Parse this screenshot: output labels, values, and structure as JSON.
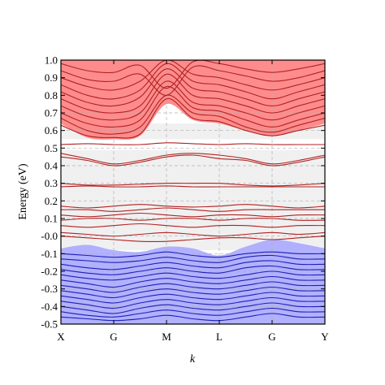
{
  "chart_data": {
    "type": "line",
    "title": "",
    "xlabel": "k",
    "ylabel": "Energy (eV)",
    "x_ticks": [
      "X",
      "G",
      "M",
      "L",
      "G",
      "Y"
    ],
    "x_positions": [
      0,
      1,
      2,
      3,
      4,
      5
    ],
    "xlim": [
      0,
      5
    ],
    "ylim": [
      -0.5,
      1.0
    ],
    "y_ticks": [
      -0.5,
      -0.4,
      -0.3,
      -0.2,
      -0.1,
      -0.0,
      0.1,
      0.2,
      0.3,
      0.4,
      0.5,
      0.6,
      0.7,
      0.8,
      0.9,
      1.0
    ],
    "y_tick_labels": [
      "-0.5",
      "-0.4",
      "-0.3",
      "-0.2",
      "-0.1",
      "-0.0",
      "0.1",
      "0.2",
      "0.3",
      "0.4",
      "0.5",
      "0.6",
      "0.7",
      "0.8",
      "0.9",
      "1.0"
    ],
    "grid": "dashed",
    "colors": {
      "conduction_line": "#b22222",
      "conduction_fill": "#ff8080",
      "valence_line": "#1f1fb4",
      "valence_fill": "#a8a8ff",
      "gap_fill": "#f0f0f0",
      "grid": "#b0b0b0"
    },
    "gap_bands": [
      {
        "y_low": -0.08,
        "y_high": 0.49
      },
      {
        "y_low": 0.55,
        "y_high": 0.64
      }
    ],
    "conduction_region": {
      "x": [
        0,
        0.5,
        1.0,
        1.5,
        2.0,
        2.5,
        3.0,
        3.5,
        4.0,
        4.5,
        5.0
      ],
      "lower_edge": [
        0.64,
        0.56,
        0.55,
        0.57,
        0.75,
        0.66,
        0.64,
        0.6,
        0.57,
        0.6,
        0.64
      ]
    },
    "valence_region": {
      "x": [
        0,
        0.5,
        1.0,
        1.5,
        2.0,
        2.5,
        3.0,
        3.5,
        4.0,
        4.5,
        5.0
      ],
      "upper_edge": [
        -0.07,
        -0.05,
        -0.08,
        -0.09,
        -0.06,
        -0.07,
        -0.11,
        -0.06,
        -0.02,
        -0.04,
        -0.07
      ]
    },
    "series": [
      {
        "group": "conduction",
        "x": [
          0,
          0.5,
          1,
          1.5,
          2,
          2.5,
          3,
          3.5,
          4,
          4.5,
          5
        ],
        "y": [
          0.63,
          0.57,
          0.56,
          0.58,
          0.78,
          0.67,
          0.65,
          0.6,
          0.57,
          0.6,
          0.63
        ]
      },
      {
        "group": "conduction",
        "x": [
          0,
          0.5,
          1,
          1.5,
          2,
          2.5,
          3,
          3.5,
          4,
          4.5,
          5
        ],
        "y": [
          0.67,
          0.6,
          0.58,
          0.62,
          0.8,
          0.7,
          0.68,
          0.62,
          0.59,
          0.63,
          0.67
        ]
      },
      {
        "group": "conduction",
        "x": [
          0,
          0.5,
          1,
          1.5,
          2,
          2.5,
          3,
          3.5,
          4,
          4.5,
          5
        ],
        "y": [
          0.7,
          0.64,
          0.62,
          0.66,
          0.85,
          0.73,
          0.71,
          0.66,
          0.62,
          0.66,
          0.7
        ]
      },
      {
        "group": "conduction",
        "x": [
          0,
          0.5,
          1,
          1.5,
          2,
          2.5,
          3,
          3.5,
          4,
          4.5,
          5
        ],
        "y": [
          0.74,
          0.68,
          0.66,
          0.7,
          0.88,
          0.76,
          0.74,
          0.7,
          0.66,
          0.7,
          0.74
        ]
      },
      {
        "group": "conduction",
        "x": [
          0,
          0.5,
          1,
          1.5,
          2,
          2.5,
          3,
          3.5,
          4,
          4.5,
          5
        ],
        "y": [
          0.78,
          0.72,
          0.7,
          0.74,
          0.92,
          0.8,
          0.78,
          0.74,
          0.7,
          0.74,
          0.78
        ]
      },
      {
        "group": "conduction",
        "x": [
          0,
          0.5,
          1,
          1.5,
          2,
          2.5,
          3,
          3.5,
          4,
          4.5,
          5
        ],
        "y": [
          0.82,
          0.76,
          0.74,
          0.79,
          0.95,
          0.84,
          0.82,
          0.78,
          0.74,
          0.78,
          0.82
        ]
      },
      {
        "group": "conduction",
        "x": [
          0,
          0.5,
          1,
          1.5,
          2,
          2.5,
          3,
          3.5,
          4,
          4.5,
          5
        ],
        "y": [
          0.86,
          0.8,
          0.78,
          0.83,
          0.98,
          0.88,
          0.86,
          0.82,
          0.78,
          0.82,
          0.86
        ]
      },
      {
        "group": "conduction",
        "x": [
          0,
          0.5,
          1,
          1.5,
          2,
          2.5,
          3,
          3.5,
          4,
          4.5,
          5
        ],
        "y": [
          0.9,
          0.85,
          0.83,
          0.88,
          1.0,
          0.92,
          0.9,
          0.86,
          0.83,
          0.86,
          0.9
        ]
      },
      {
        "group": "conduction",
        "x": [
          0,
          0.5,
          1,
          1.5,
          2,
          2.5,
          3,
          3.5,
          4,
          4.5,
          5
        ],
        "y": [
          0.94,
          0.89,
          0.88,
          0.92,
          0.8,
          0.96,
          0.94,
          0.91,
          0.88,
          0.9,
          0.94
        ]
      },
      {
        "group": "conduction",
        "x": [
          0,
          0.5,
          1,
          1.5,
          2,
          2.5,
          3,
          3.5,
          4,
          4.5,
          5
        ],
        "y": [
          0.98,
          0.94,
          0.93,
          0.97,
          0.84,
          0.99,
          0.98,
          0.95,
          0.93,
          0.95,
          0.98
        ]
      },
      {
        "group": "gap",
        "x": [
          0,
          0.5,
          1,
          1.5,
          2,
          2.5,
          3,
          3.5,
          4,
          4.5,
          5
        ],
        "y": [
          0.52,
          0.525,
          0.52,
          0.52,
          0.53,
          0.525,
          0.52,
          0.525,
          0.52,
          0.52,
          0.52
        ]
      },
      {
        "group": "gap",
        "x": [
          0,
          0.5,
          1,
          1.5,
          2,
          2.5,
          3,
          3.5,
          4,
          4.5,
          5
        ],
        "y": [
          0.47,
          0.44,
          0.41,
          0.43,
          0.46,
          0.47,
          0.46,
          0.44,
          0.41,
          0.43,
          0.46
        ]
      },
      {
        "group": "gap",
        "x": [
          0,
          0.5,
          1,
          1.5,
          2,
          2.5,
          3,
          3.5,
          4,
          4.5,
          5
        ],
        "y": [
          0.45,
          0.43,
          0.4,
          0.42,
          0.45,
          0.46,
          0.44,
          0.43,
          0.4,
          0.42,
          0.45
        ]
      },
      {
        "group": "gap",
        "x": [
          0,
          0.5,
          1,
          1.5,
          2,
          2.5,
          3,
          3.5,
          4,
          4.5,
          5
        ],
        "y": [
          0.3,
          0.29,
          0.29,
          0.295,
          0.3,
          0.3,
          0.3,
          0.29,
          0.285,
          0.29,
          0.3
        ]
      },
      {
        "group": "gap",
        "x": [
          0,
          0.5,
          1,
          1.5,
          2,
          2.5,
          3,
          3.5,
          4,
          4.5,
          5
        ],
        "y": [
          0.28,
          0.285,
          0.28,
          0.28,
          0.285,
          0.28,
          0.28,
          0.28,
          0.28,
          0.28,
          0.28
        ]
      },
      {
        "group": "gap",
        "x": [
          0,
          0.5,
          1,
          1.5,
          2,
          2.5,
          3,
          3.5,
          4,
          4.5,
          5
        ],
        "y": [
          0.17,
          0.16,
          0.17,
          0.18,
          0.17,
          0.165,
          0.17,
          0.18,
          0.17,
          0.16,
          0.17
        ]
      },
      {
        "group": "gap",
        "x": [
          0,
          0.5,
          1,
          1.5,
          2,
          2.5,
          3,
          3.5,
          4,
          4.5,
          5
        ],
        "y": [
          0.15,
          0.15,
          0.14,
          0.15,
          0.16,
          0.15,
          0.14,
          0.15,
          0.15,
          0.15,
          0.15
        ]
      },
      {
        "group": "gap",
        "x": [
          0,
          0.5,
          1,
          1.5,
          2,
          2.5,
          3,
          3.5,
          4,
          4.5,
          5
        ],
        "y": [
          0.12,
          0.11,
          0.12,
          0.13,
          0.12,
          0.11,
          0.12,
          0.12,
          0.11,
          0.12,
          0.12
        ]
      },
      {
        "group": "gap",
        "x": [
          0,
          0.5,
          1,
          1.5,
          2,
          2.5,
          3,
          3.5,
          4,
          4.5,
          5
        ],
        "y": [
          0.09,
          0.1,
          0.1,
          0.09,
          0.1,
          0.1,
          0.09,
          0.1,
          0.1,
          0.09,
          0.09
        ]
      },
      {
        "group": "gap",
        "x": [
          0,
          0.5,
          1,
          1.5,
          2,
          2.5,
          3,
          3.5,
          4,
          4.5,
          5
        ],
        "y": [
          0.06,
          0.05,
          0.06,
          0.07,
          0.06,
          0.05,
          0.06,
          0.06,
          0.05,
          0.06,
          0.06
        ]
      },
      {
        "group": "gap",
        "x": [
          0,
          0.5,
          1,
          1.5,
          2,
          2.5,
          3,
          3.5,
          4,
          4.5,
          5
        ],
        "y": [
          0.02,
          0.01,
          0.0,
          0.01,
          0.02,
          0.01,
          0.0,
          0.01,
          0.02,
          0.01,
          0.02
        ]
      },
      {
        "group": "gap",
        "x": [
          0,
          0.5,
          1,
          1.5,
          2,
          2.5,
          3,
          3.5,
          4,
          4.5,
          5
        ],
        "y": [
          0.0,
          -0.01,
          -0.02,
          -0.03,
          -0.03,
          -0.02,
          -0.01,
          -0.01,
          -0.02,
          -0.01,
          0.0
        ]
      },
      {
        "group": "valence",
        "x": [
          0,
          0.5,
          1,
          1.5,
          2,
          2.5,
          3,
          3.5,
          4,
          4.5,
          5
        ],
        "y": [
          -0.1,
          -0.11,
          -0.12,
          -0.11,
          -0.09,
          -0.11,
          -0.12,
          -0.1,
          -0.09,
          -0.1,
          -0.1
        ]
      },
      {
        "group": "valence",
        "x": [
          0,
          0.5,
          1,
          1.5,
          2,
          2.5,
          3,
          3.5,
          4,
          4.5,
          5
        ],
        "y": [
          -0.13,
          -0.14,
          -0.15,
          -0.14,
          -0.12,
          -0.14,
          -0.15,
          -0.12,
          -0.11,
          -0.13,
          -0.13
        ]
      },
      {
        "group": "valence",
        "x": [
          0,
          0.5,
          1,
          1.5,
          2,
          2.5,
          3,
          3.5,
          4,
          4.5,
          5
        ],
        "y": [
          -0.16,
          -0.18,
          -0.19,
          -0.17,
          -0.15,
          -0.17,
          -0.18,
          -0.15,
          -0.14,
          -0.16,
          -0.16
        ]
      },
      {
        "group": "valence",
        "x": [
          0,
          0.5,
          1,
          1.5,
          2,
          2.5,
          3,
          3.5,
          4,
          4.5,
          5
        ],
        "y": [
          -0.19,
          -0.21,
          -0.22,
          -0.2,
          -0.18,
          -0.2,
          -0.21,
          -0.18,
          -0.17,
          -0.19,
          -0.19
        ]
      },
      {
        "group": "valence",
        "x": [
          0,
          0.5,
          1,
          1.5,
          2,
          2.5,
          3,
          3.5,
          4,
          4.5,
          5
        ],
        "y": [
          -0.22,
          -0.24,
          -0.25,
          -0.23,
          -0.21,
          -0.23,
          -0.24,
          -0.22,
          -0.2,
          -0.22,
          -0.22
        ]
      },
      {
        "group": "valence",
        "x": [
          0,
          0.5,
          1,
          1.5,
          2,
          2.5,
          3,
          3.5,
          4,
          4.5,
          5
        ],
        "y": [
          -0.25,
          -0.27,
          -0.29,
          -0.26,
          -0.24,
          -0.26,
          -0.27,
          -0.25,
          -0.23,
          -0.25,
          -0.25
        ]
      },
      {
        "group": "valence",
        "x": [
          0,
          0.5,
          1,
          1.5,
          2,
          2.5,
          3,
          3.5,
          4,
          4.5,
          5
        ],
        "y": [
          -0.28,
          -0.3,
          -0.32,
          -0.29,
          -0.27,
          -0.29,
          -0.3,
          -0.28,
          -0.26,
          -0.28,
          -0.28
        ]
      },
      {
        "group": "valence",
        "x": [
          0,
          0.5,
          1,
          1.5,
          2,
          2.5,
          3,
          3.5,
          4,
          4.5,
          5
        ],
        "y": [
          -0.31,
          -0.33,
          -0.35,
          -0.32,
          -0.3,
          -0.32,
          -0.33,
          -0.31,
          -0.29,
          -0.31,
          -0.31
        ]
      },
      {
        "group": "valence",
        "x": [
          0,
          0.5,
          1,
          1.5,
          2,
          2.5,
          3,
          3.5,
          4,
          4.5,
          5
        ],
        "y": [
          -0.34,
          -0.36,
          -0.38,
          -0.35,
          -0.33,
          -0.35,
          -0.36,
          -0.34,
          -0.32,
          -0.34,
          -0.34
        ]
      },
      {
        "group": "valence",
        "x": [
          0,
          0.5,
          1,
          1.5,
          2,
          2.5,
          3,
          3.5,
          4,
          4.5,
          5
        ],
        "y": [
          -0.37,
          -0.39,
          -0.41,
          -0.38,
          -0.36,
          -0.38,
          -0.39,
          -0.37,
          -0.35,
          -0.37,
          -0.37
        ]
      },
      {
        "group": "valence",
        "x": [
          0,
          0.5,
          1,
          1.5,
          2,
          2.5,
          3,
          3.5,
          4,
          4.5,
          5
        ],
        "y": [
          -0.4,
          -0.42,
          -0.44,
          -0.41,
          -0.39,
          -0.41,
          -0.42,
          -0.4,
          -0.38,
          -0.4,
          -0.4
        ]
      },
      {
        "group": "valence",
        "x": [
          0,
          0.5,
          1,
          1.5,
          2,
          2.5,
          3,
          3.5,
          4,
          4.5,
          5
        ],
        "y": [
          -0.43,
          -0.45,
          -0.46,
          -0.44,
          -0.42,
          -0.44,
          -0.45,
          -0.43,
          -0.41,
          -0.43,
          -0.43
        ]
      },
      {
        "group": "valence",
        "x": [
          0,
          0.5,
          1,
          1.5,
          2,
          2.5,
          3,
          3.5,
          4,
          4.5,
          5
        ],
        "y": [
          -0.46,
          -0.47,
          -0.48,
          -0.47,
          -0.45,
          -0.47,
          -0.48,
          -0.46,
          -0.44,
          -0.46,
          -0.46
        ]
      }
    ]
  }
}
